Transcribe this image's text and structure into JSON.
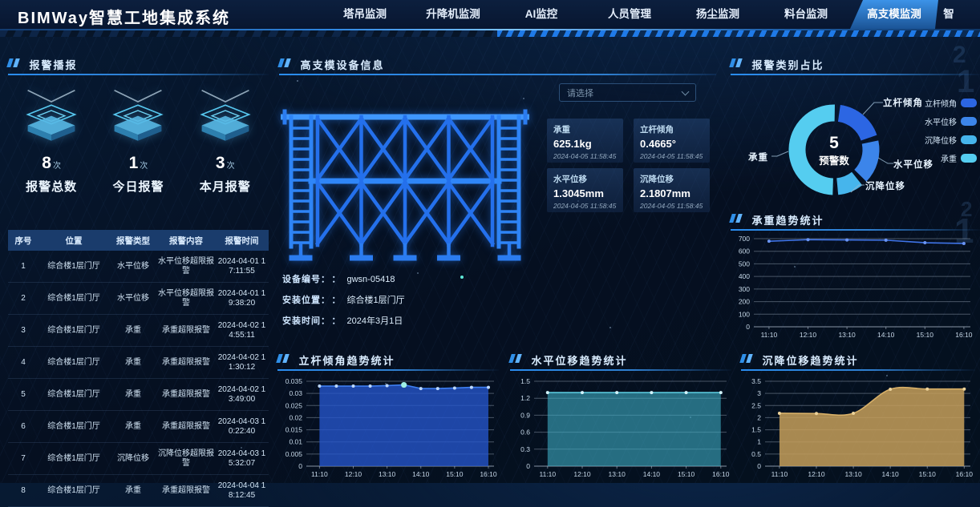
{
  "header": {
    "title": "BIMWay智慧工地集成系统",
    "tabs": [
      {
        "label": "塔吊监测",
        "active": false
      },
      {
        "label": "升降机监测",
        "active": false
      },
      {
        "label": "AI监控",
        "active": false
      },
      {
        "label": "人员管理",
        "active": false
      },
      {
        "label": "扬尘监测",
        "active": false
      },
      {
        "label": "料台监测",
        "active": false
      },
      {
        "label": "高支模监测",
        "active": true
      },
      {
        "label": "智",
        "active": false,
        "partial": true
      }
    ]
  },
  "alarm_panel": {
    "title": "报警播报",
    "stats": [
      {
        "value": "8",
        "unit": "次",
        "label": "报警总数"
      },
      {
        "value": "1",
        "unit": "次",
        "label": "今日报警"
      },
      {
        "value": "3",
        "unit": "次",
        "label": "本月报警"
      }
    ],
    "table": {
      "headers": [
        "序号",
        "位置",
        "报警类型",
        "报警内容",
        "报警时间"
      ],
      "rows": [
        [
          "1",
          "综合楼1层门厅",
          "水平位移",
          "水平位移超限报警",
          "2024-04-01 17:11:55"
        ],
        [
          "2",
          "综合楼1层门厅",
          "水平位移",
          "水平位移超限报警",
          "2024-04-01 19:38:20"
        ],
        [
          "3",
          "综合楼1层门厅",
          "承重",
          "承重超限报警",
          "2024-04-02 14:55:11"
        ],
        [
          "4",
          "综合楼1层门厅",
          "承重",
          "承重超限报警",
          "2024-04-02 11:30:12"
        ],
        [
          "5",
          "综合楼1层门厅",
          "承重",
          "承重超限报警",
          "2024-04-02 13:49:00"
        ],
        [
          "6",
          "综合楼1层门厅",
          "承重",
          "承重超限报警",
          "2024-04-03 10:22:40"
        ],
        [
          "7",
          "综合楼1层门厅",
          "沉降位移",
          "沉降位移超限报警",
          "2024-04-03 15:32:07"
        ],
        [
          "8",
          "综合楼1层门厅",
          "承重",
          "承重超限报警",
          "2024-04-04 18:12:45"
        ]
      ]
    }
  },
  "device_panel": {
    "title": "高支模设备信息",
    "select_placeholder": "请选择",
    "info": [
      {
        "label": "设备编号：",
        "colon": "：",
        "value": "gwsn-05418"
      },
      {
        "label": "安装位置：",
        "colon": "：",
        "value": "综合楼1层门厅"
      },
      {
        "label": "安装时间：",
        "colon": "：",
        "value": "2024年3月1日"
      }
    ],
    "metrics": [
      {
        "label": "承重",
        "value": "625.1kg",
        "time": "2024-04-05 11:58:45"
      },
      {
        "label": "立杆倾角",
        "value": "0.4665°",
        "time": "2024-04-05 11:58:45"
      },
      {
        "label": "水平位移",
        "value": "1.3045mm",
        "time": "2024-04-05 11:58:45"
      },
      {
        "label": "沉降位移",
        "value": "2.1807mm",
        "time": "2024-04-05 11:58:45"
      }
    ]
  },
  "chart_data": [
    {
      "id": "alarm-category-donut",
      "type": "pie",
      "title": "报警类别占比",
      "center_value": "5",
      "center_label": "预警数",
      "legend_position": "right",
      "series": [
        {
          "name": "立杆倾角",
          "percent_est": 19,
          "color": "#2c66e3"
        },
        {
          "name": "水平位移",
          "percent_est": 17,
          "color": "#3c85ea"
        },
        {
          "name": "沉降位移",
          "percent_est": 10,
          "color": "#46b5ec"
        },
        {
          "name": "承重",
          "percent_est": 54,
          "color": "#55cdf0"
        }
      ]
    },
    {
      "id": "load-trend",
      "type": "line",
      "title": "承重趋势统计",
      "x": [
        "11:10",
        "12:10",
        "13:10",
        "14:10",
        "15:10",
        "16:10"
      ],
      "values": [
        680,
        692,
        690,
        688,
        668,
        662
      ],
      "ylim": [
        0,
        700
      ],
      "yticks": [
        "0",
        "100",
        "200",
        "300",
        "400",
        "500",
        "600",
        "700"
      ],
      "grid": true,
      "color": "#3f74e8",
      "dot": "#6a95f5"
    },
    {
      "id": "tilt-trend",
      "type": "area",
      "title": "立杆倾角趋势统计",
      "x": [
        "11:10",
        "12:10",
        "13:10",
        "14:10",
        "15:10",
        "16:10"
      ],
      "values": [
        0.033,
        0.033,
        0.033,
        0.033,
        0.0332,
        0.0335,
        0.032,
        0.032,
        0.0322,
        0.0325,
        0.0325
      ],
      "highlight_index": 5,
      "ylim": [
        0,
        0.035
      ],
      "yticks": [
        "0",
        "0.005",
        "0.01",
        "0.015",
        "0.02",
        "0.025",
        "0.03",
        "0.035"
      ],
      "grid": true,
      "color": "#3e7ef0",
      "fill": "rgba(37,86,205,0.78)",
      "dot": "#bcd8ff",
      "highlight_color": "#9ff0e6"
    },
    {
      "id": "hdisp-trend",
      "type": "area",
      "title": "水平位移趋势统计",
      "x": [
        "11:10",
        "12:10",
        "13:10",
        "14:10",
        "15:10",
        "16:10"
      ],
      "values": [
        1.3,
        1.3,
        1.3,
        1.3,
        1.3,
        1.3
      ],
      "ylim": [
        0,
        1.5
      ],
      "yticks": [
        "0",
        "0.3",
        "0.6",
        "0.9",
        "1.2",
        "1.5"
      ],
      "grid": true,
      "color": "#5fd4e8",
      "fill": "rgba(62,172,195,0.6)",
      "dot": "#d2f4fb"
    },
    {
      "id": "settle-trend",
      "type": "area",
      "title": "沉降位移趋势统计",
      "x": [
        "11:10",
        "12:10",
        "13:10",
        "14:10",
        "15:10",
        "16:10"
      ],
      "values": [
        2.18,
        2.17,
        2.18,
        3.17,
        3.18,
        3.18
      ],
      "smooth": true,
      "ylim": [
        0,
        3.5
      ],
      "yticks": [
        "0",
        "0.5",
        "1",
        "1.5",
        "2",
        "2.5",
        "3",
        "3.5"
      ],
      "grid": true,
      "color": "#d8b068",
      "fill": "rgba(197,159,90,0.85)",
      "dot": "#ecd29a"
    }
  ]
}
